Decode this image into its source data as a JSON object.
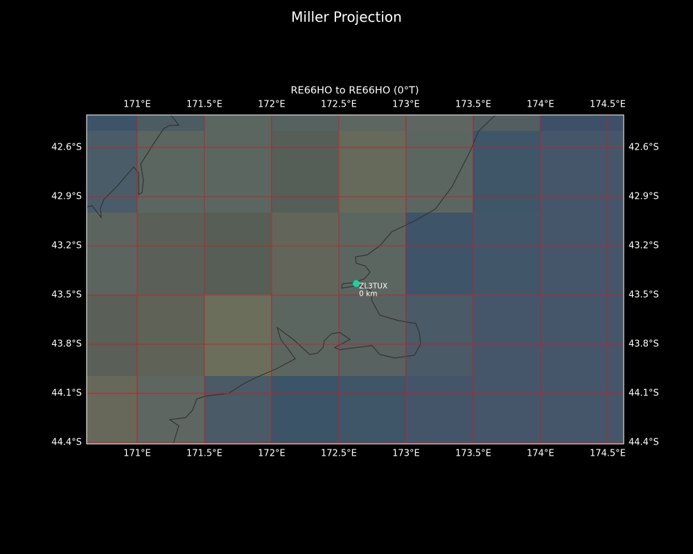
{
  "map": {
    "title": "Miller Projection",
    "subtitle": "RE66HO to RE66HO (0°T)",
    "xlim": [
      170.624,
      174.619
    ],
    "ylim": [
      -44.408,
      -42.401
    ],
    "xticks": [
      {
        "value": 171,
        "label": "171°E"
      },
      {
        "value": 171.5,
        "label": "171.5°E"
      },
      {
        "value": 172,
        "label": "172°E"
      },
      {
        "value": 172.5,
        "label": "172.5°E"
      },
      {
        "value": 173,
        "label": "173°E"
      },
      {
        "value": 173.5,
        "label": "173.5°E"
      },
      {
        "value": 174,
        "label": "174°E"
      },
      {
        "value": 174.5,
        "label": "174.5°E"
      }
    ],
    "yticks": [
      {
        "value": -42.6,
        "label": "42.6°S"
      },
      {
        "value": -42.9,
        "label": "42.9°S"
      },
      {
        "value": -43.2,
        "label": "43.2°S"
      },
      {
        "value": -43.5,
        "label": "43.5°S"
      },
      {
        "value": -43.8,
        "label": "43.8°S"
      },
      {
        "value": -44.1,
        "label": "44.1°S"
      },
      {
        "value": -44.4,
        "label": "44.4°S"
      }
    ],
    "grid": true,
    "stations": [
      {
        "name": "ZL3TUX",
        "distance": "0 km",
        "lon": 172.63,
        "lat": -43.43,
        "color": "#1fd1a0"
      }
    ]
  }
}
